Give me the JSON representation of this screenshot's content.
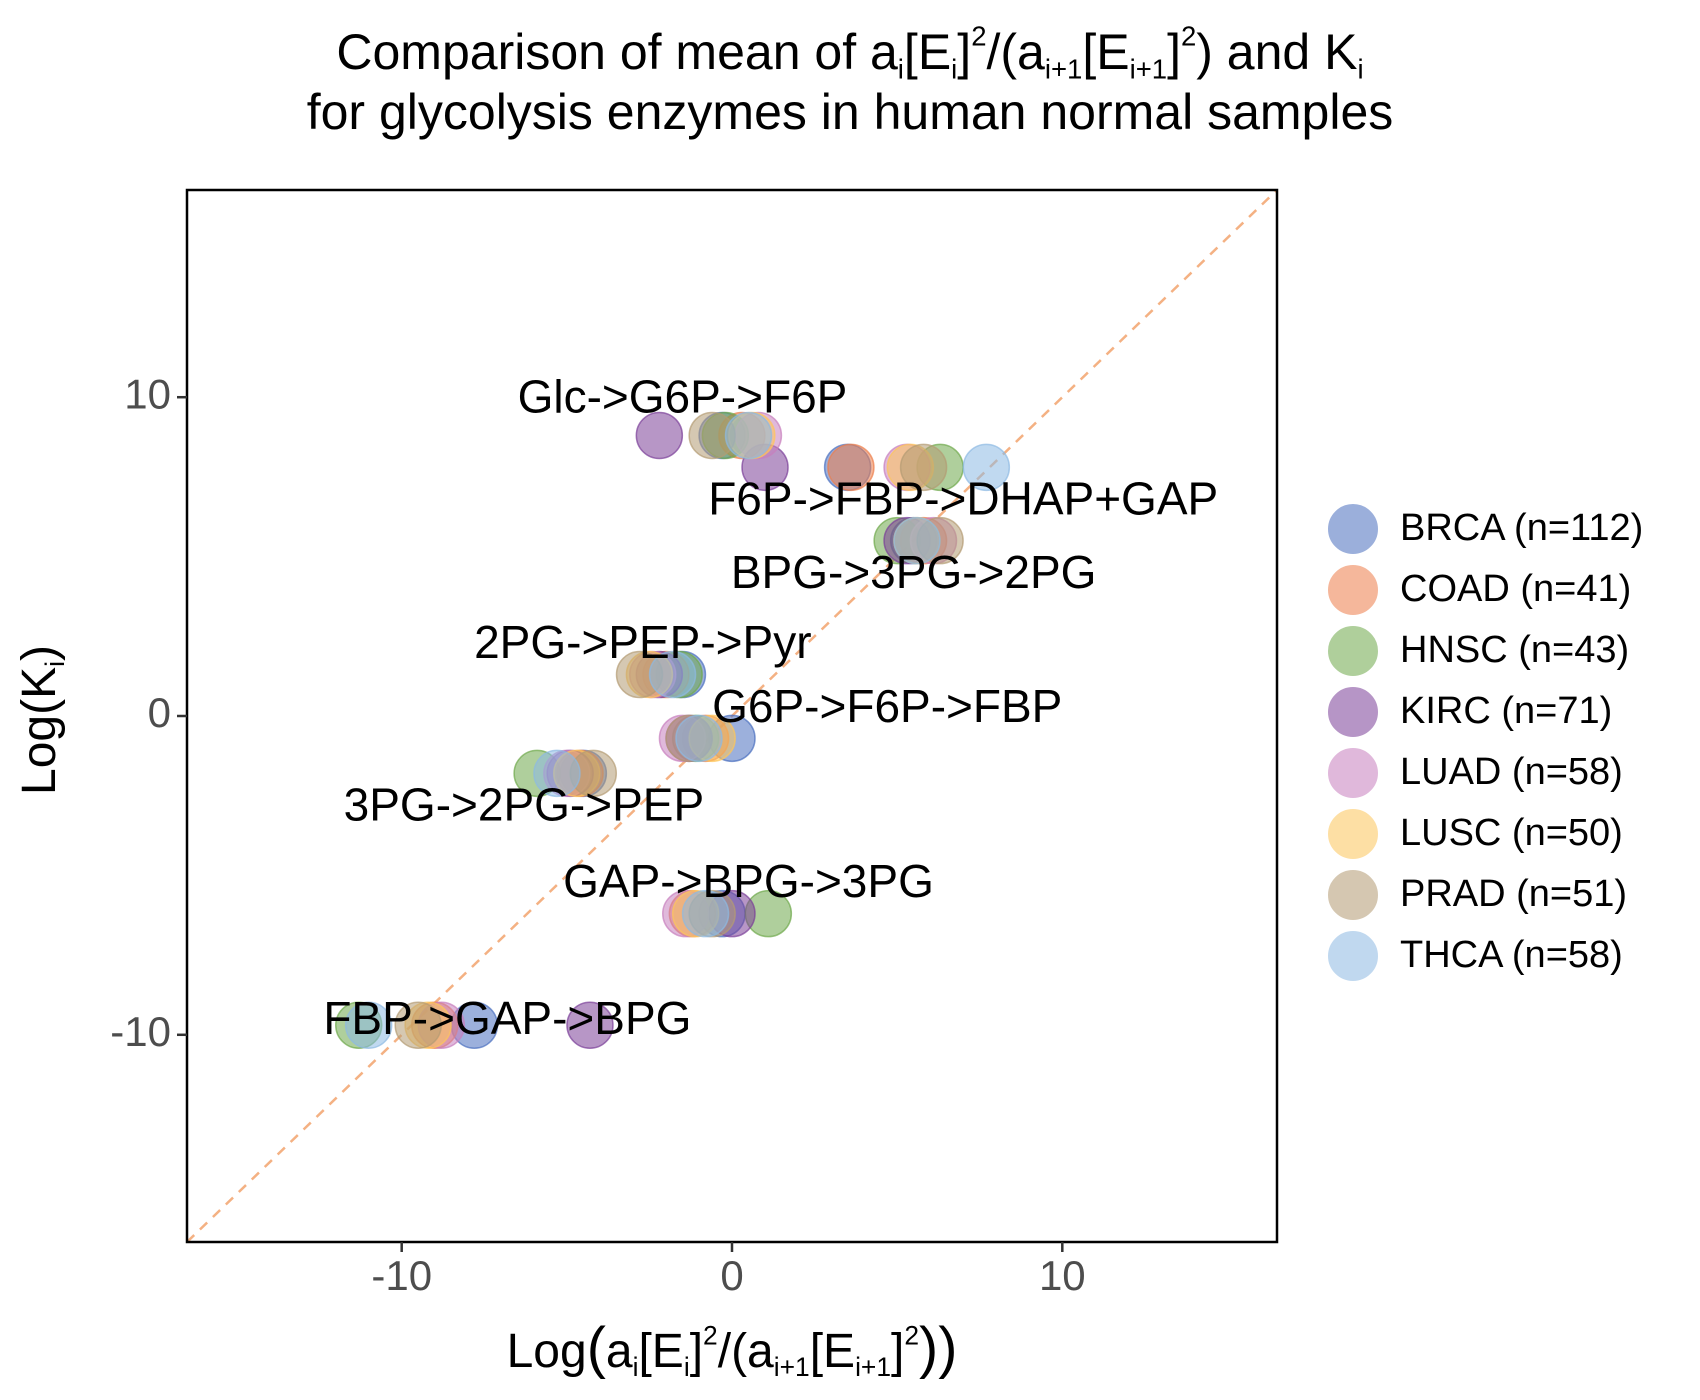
{
  "title": {
    "line1_a": "Comparison of mean of a",
    "line1_b": "[E",
    "line1_c": "]",
    "line1_d": "(a",
    "line1_e": "[E",
    "line1_f": "]",
    "line1_g": ") and K",
    "line2": "for glycolysis enzymes in human normal samples",
    "sub_i": "i",
    "sub_ip1": "i+1",
    "sup_2": "2",
    "slash": "/"
  },
  "chart_data": {
    "type": "scatter",
    "xlim": [
      -16.5,
      16.5
    ],
    "ylim": [
      -16.5,
      16.5
    ],
    "xticks": [
      -10,
      0,
      10
    ],
    "yticks": [
      -10,
      0,
      10
    ],
    "xtick_labels": [
      "-10",
      "0",
      "10"
    ],
    "ytick_labels": [
      "-10",
      "0",
      "10"
    ],
    "grid": false,
    "reference_line": {
      "style": "dashed",
      "slope": 1,
      "intercept": 0,
      "color": "#f4b183"
    },
    "legend_position": "right",
    "series": [
      {
        "name": "BRCA (n=112)",
        "color": "#4a6fbf",
        "points": [
          [
            -0.3,
            8.8
          ],
          [
            3.5,
            7.8
          ],
          [
            5.5,
            5.5
          ],
          [
            -1.5,
            1.3
          ],
          [
            0.0,
            -0.7
          ],
          [
            -4.5,
            -1.8
          ],
          [
            -0.3,
            -6.2
          ],
          [
            -7.8,
            -9.7
          ]
        ]
      },
      {
        "name": "COAD (n=41)",
        "color": "#ed7d4a",
        "points": [
          [
            0.3,
            8.8
          ],
          [
            3.6,
            7.8
          ],
          [
            5.8,
            5.5
          ],
          [
            -2.0,
            1.3
          ],
          [
            -0.8,
            -0.7
          ],
          [
            -4.6,
            -1.8
          ],
          [
            -1.2,
            -6.2
          ],
          [
            -9.0,
            -9.7
          ]
        ]
      },
      {
        "name": "HNSC (n=43)",
        "color": "#6ea84a",
        "points": [
          [
            -0.2,
            8.8
          ],
          [
            6.3,
            7.8
          ],
          [
            5.0,
            5.5
          ],
          [
            -1.6,
            1.3
          ],
          [
            -1.1,
            -0.7
          ],
          [
            -5.9,
            -1.8
          ],
          [
            1.1,
            -6.2
          ],
          [
            -11.3,
            -9.7
          ]
        ]
      },
      {
        "name": "KIRC (n=71)",
        "color": "#7b3f98",
        "points": [
          [
            -2.2,
            8.8
          ],
          [
            1.0,
            7.8
          ],
          [
            5.3,
            5.5
          ],
          [
            -2.2,
            1.3
          ],
          [
            -1.3,
            -0.7
          ],
          [
            -4.9,
            -1.8
          ],
          [
            0.0,
            -6.2
          ],
          [
            -4.3,
            -9.7
          ]
        ]
      },
      {
        "name": "LUAD (n=58)",
        "color": "#c77fbe",
        "points": [
          [
            0.8,
            8.8
          ],
          [
            5.3,
            7.8
          ],
          [
            6.1,
            5.5
          ],
          [
            -2.4,
            1.3
          ],
          [
            -1.5,
            -0.7
          ],
          [
            -5.0,
            -1.8
          ],
          [
            -1.4,
            -6.2
          ],
          [
            -8.8,
            -9.7
          ]
        ]
      },
      {
        "name": "LUSC (n=50)",
        "color": "#fdc65a",
        "points": [
          [
            0.6,
            8.8
          ],
          [
            5.4,
            7.8
          ],
          [
            5.6,
            5.5
          ],
          [
            -2.5,
            1.3
          ],
          [
            -0.6,
            -0.7
          ],
          [
            -4.7,
            -1.8
          ],
          [
            -1.1,
            -6.2
          ],
          [
            -9.2,
            -9.7
          ]
        ]
      },
      {
        "name": "PRAD (n=51)",
        "color": "#b39b73",
        "points": [
          [
            -0.6,
            8.8
          ],
          [
            5.8,
            7.8
          ],
          [
            6.3,
            5.5
          ],
          [
            -2.8,
            1.3
          ],
          [
            -1.3,
            -0.7
          ],
          [
            -4.2,
            -1.8
          ],
          [
            -0.6,
            -6.2
          ],
          [
            -9.5,
            -9.7
          ]
        ]
      },
      {
        "name": "THCA (n=58)",
        "color": "#8db9e3",
        "points": [
          [
            0.5,
            8.8
          ],
          [
            7.7,
            7.8
          ],
          [
            5.6,
            5.5
          ],
          [
            -1.8,
            1.3
          ],
          [
            -1.0,
            -0.7
          ],
          [
            -5.3,
            -1.8
          ],
          [
            -0.8,
            -6.2
          ],
          [
            -11.0,
            -9.7
          ]
        ]
      }
    ],
    "annotations": [
      {
        "text": "Glc->G6P->F6P",
        "x": -1.5,
        "y": 9.9
      },
      {
        "text": "F6P->FBP->DHAP+GAP",
        "x": 7.0,
        "y": 6.7
      },
      {
        "text": "BPG->3PG->2PG",
        "x": 5.5,
        "y": 4.4
      },
      {
        "text": "2PG->PEP->Pyr",
        "x": -2.7,
        "y": 2.2
      },
      {
        "text": "G6P->F6P->FBP",
        "x": 4.7,
        "y": 0.2
      },
      {
        "text": "3PG->2PG->PEP",
        "x": -6.3,
        "y": -2.9
      },
      {
        "text": "GAP->BPG->3PG",
        "x": 0.5,
        "y": -5.3
      },
      {
        "text": "FBP->GAP->BPG",
        "x": -6.8,
        "y": -9.6
      }
    ]
  },
  "axes": {
    "y_label_a": "Log(K",
    "y_label_b": ")",
    "x_label_a": "Log",
    "x_label_b": "(",
    "x_label_c": "a",
    "x_label_d": "[E",
    "x_label_e": "]",
    "x_label_f": "(a",
    "x_label_g": "[E",
    "x_label_h": "]",
    "x_label_i": "))"
  }
}
